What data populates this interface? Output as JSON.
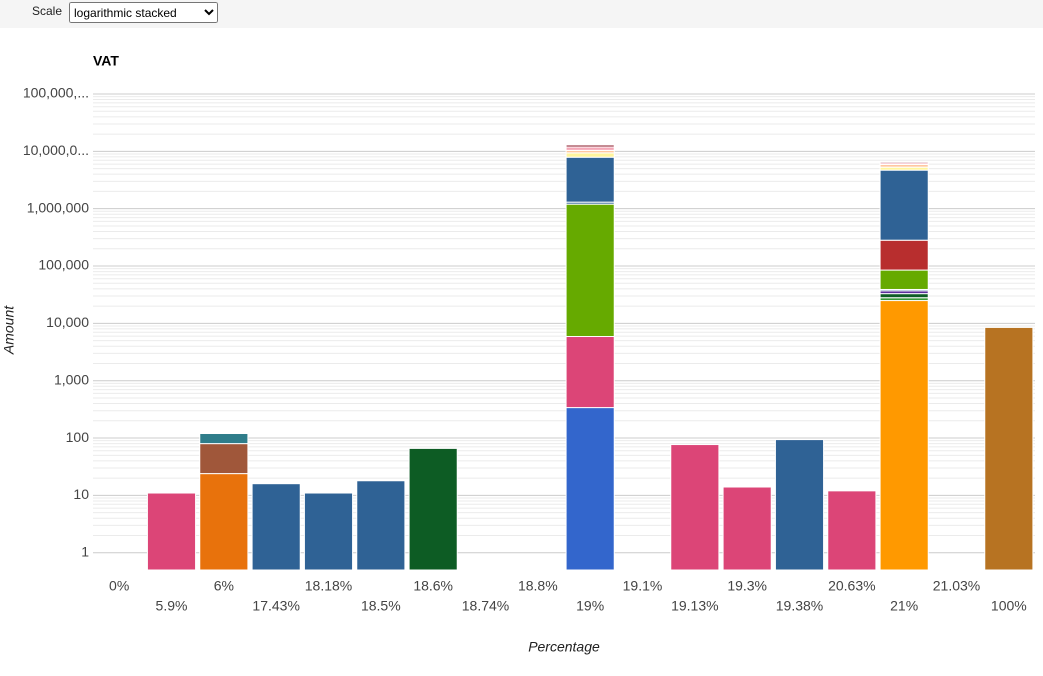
{
  "scale_control": {
    "label": "Scale",
    "selected": "logarithmic stacked"
  },
  "chart_data": {
    "type": "bar",
    "stacked": true,
    "log_scale": true,
    "grid": true,
    "title": "VAT",
    "x_label": "Percentage",
    "y_label": "Amount",
    "categories": [
      "0%",
      "5.9%",
      "6%",
      "17.43%",
      "18.18%",
      "18.5%",
      "18.6%",
      "18.74%",
      "18.8%",
      "19%",
      "19.1%",
      "19.13%",
      "19.3%",
      "19.38%",
      "20.63%",
      "21%",
      "21.03%",
      "100%"
    ],
    "stacks": [
      [],
      [
        {
          "value": 11,
          "color": "#dc4577"
        }
      ],
      [
        {
          "value": 24,
          "color": "#e8720c"
        },
        {
          "value": 56,
          "color": "#a0573a"
        },
        {
          "value": 40,
          "color": "#2f7d8a"
        }
      ],
      [
        {
          "value": 16,
          "color": "#2f6295"
        }
      ],
      [
        {
          "value": 11,
          "color": "#2f6295"
        }
      ],
      [
        {
          "value": 18,
          "color": "#2f6295"
        }
      ],
      [
        {
          "value": 66,
          "color": "#0d5c24"
        }
      ],
      [],
      [],
      [
        {
          "value": 340,
          "color": "#3366cc"
        },
        {
          "value": 5560,
          "color": "#dc4577"
        },
        {
          "value": 1194100,
          "color": "#66aa00"
        },
        {
          "value": 100000,
          "color": "#2f6295"
        },
        {
          "value": 6600000,
          "color": "#2f6295"
        },
        {
          "value": 1500000,
          "color": "#fff59d"
        },
        {
          "value": 1000000,
          "color": "#ffc8a0"
        },
        {
          "value": 1500000,
          "color": "#f4a6b6"
        },
        {
          "value": 1000000,
          "color": "#8b1a2a"
        }
      ],
      [],
      [
        {
          "value": 77,
          "color": "#dc4577"
        }
      ],
      [
        {
          "value": 14,
          "color": "#dc4577"
        }
      ],
      [
        {
          "value": 94,
          "color": "#2f6295"
        }
      ],
      [
        {
          "value": 12,
          "color": "#dc4577"
        }
      ],
      [
        {
          "value": 25000,
          "color": "#ff9900"
        },
        {
          "value": 3000,
          "color": "#3a9a3a"
        },
        {
          "value": 5000,
          "color": "#0d5c24"
        },
        {
          "value": 4000,
          "color": "#5b2f9a"
        },
        {
          "value": 2000,
          "color": "#2f6295"
        },
        {
          "value": 46000,
          "color": "#66aa00"
        },
        {
          "value": 197000,
          "color": "#b82e2e"
        },
        {
          "value": 4418000,
          "color": "#2f6295"
        },
        {
          "value": 600000,
          "color": "#fff59d"
        },
        {
          "value": 600000,
          "color": "#ffc8a0"
        },
        {
          "value": 400000,
          "color": "#f4a6b6"
        },
        {
          "value": 300000,
          "color": "#8b1a2a"
        }
      ],
      [],
      [
        {
          "value": 8500,
          "color": "#b77322"
        }
      ]
    ],
    "ylim": [
      0.5,
      100000000
    ],
    "yticks": [
      1,
      10,
      100,
      {
        "value": 1000,
        "label": "1,000"
      },
      {
        "value": 10000,
        "label": "10,000"
      },
      {
        "value": 100000,
        "label": "100,000"
      },
      {
        "value": 1000000,
        "label": "1,000,000"
      },
      {
        "value": 10000000,
        "label": "10,000,0..."
      },
      {
        "value": 100000000,
        "label": "100,000,..."
      }
    ]
  }
}
